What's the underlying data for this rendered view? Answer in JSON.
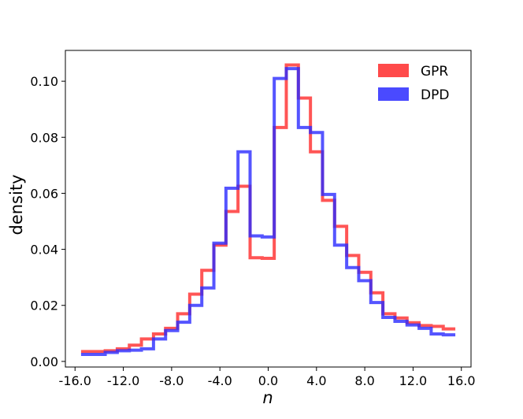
{
  "chart_data": {
    "type": "step-histogram",
    "title": "",
    "xlabel": "n",
    "ylabel": "density",
    "xlim": [
      -16.8,
      16.8
    ],
    "ylim": [
      -0.002,
      0.111
    ],
    "x_ticks": [
      -16,
      -12,
      -8,
      -4,
      0,
      4,
      8,
      12,
      16
    ],
    "x_tick_labels": [
      "-16.0",
      "-12.0",
      "-8.0",
      "-4.0",
      "0.0",
      "4.0",
      "8.0",
      "12.0",
      "16.0"
    ],
    "y_ticks": [
      0,
      0.02,
      0.04,
      0.06,
      0.08,
      0.1
    ],
    "y_tick_labels": [
      "0.00",
      "0.02",
      "0.04",
      "0.06",
      "0.08",
      "0.10"
    ],
    "bin_edges": [
      -15.5,
      -14.5,
      -13.5,
      -12.5,
      -11.5,
      -10.5,
      -9.5,
      -8.5,
      -7.5,
      -6.5,
      -5.5,
      -4.5,
      -3.5,
      -2.5,
      -1.5,
      -0.5,
      0.5,
      1.5,
      2.5,
      3.5,
      4.5,
      5.5,
      6.5,
      7.5,
      8.5,
      9.5,
      10.5,
      11.5,
      12.5,
      13.5,
      14.5,
      15.5
    ],
    "series": [
      {
        "name": "GPR",
        "color": "#ff2a2a",
        "values": [
          0.0035,
          0.0035,
          0.0038,
          0.0045,
          0.0058,
          0.008,
          0.0098,
          0.0118,
          0.017,
          0.024,
          0.0325,
          0.0415,
          0.0535,
          0.0625,
          0.037,
          0.0368,
          0.0835,
          0.1058,
          0.094,
          0.0748,
          0.0575,
          0.0482,
          0.0378,
          0.0318,
          0.0245,
          0.017,
          0.0155,
          0.0138,
          0.0128,
          0.0125,
          0.0116
        ]
      },
      {
        "name": "DPD",
        "color": "#2a2aff",
        "values": [
          0.0025,
          0.0025,
          0.0032,
          0.0038,
          0.004,
          0.0045,
          0.008,
          0.011,
          0.014,
          0.02,
          0.0262,
          0.0422,
          0.0618,
          0.0748,
          0.0448,
          0.0444,
          0.101,
          0.1045,
          0.0835,
          0.0817,
          0.0596,
          0.0415,
          0.0335,
          0.0288,
          0.021,
          0.0157,
          0.0143,
          0.013,
          0.0118,
          0.0098,
          0.0095
        ]
      }
    ],
    "legend": {
      "position": "top-right",
      "entries": [
        "GPR",
        "DPD"
      ]
    }
  }
}
